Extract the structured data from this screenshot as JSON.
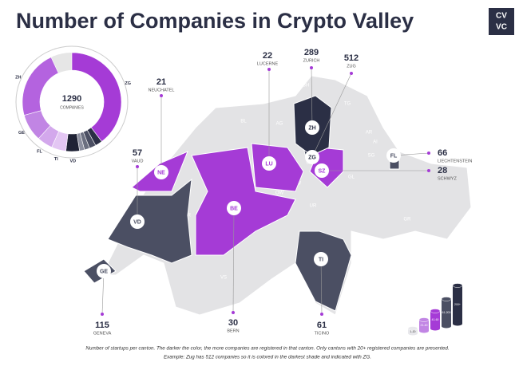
{
  "title": "Number of Companies in Crypto Valley",
  "logo": [
    "CV",
    "VC"
  ],
  "total": {
    "value": 1290,
    "label": "COMPANIES"
  },
  "cantons": [
    {
      "code": "ZG",
      "count": 512,
      "name": "ZUG",
      "color": "#2b2f45"
    },
    {
      "code": "BE",
      "count": 30,
      "name": "BERN",
      "color": "#a53bd6"
    },
    {
      "code": "SZ",
      "count": 28,
      "name": "SCHWYZ",
      "color": "#a53bd6"
    },
    {
      "code": "LU",
      "count": 22,
      "name": "LUCERNE",
      "color": "#a53bd6"
    },
    {
      "code": "NE",
      "count": 21,
      "name": "NEUCHATEL",
      "color": "#a53bd6"
    },
    {
      "code": "VD",
      "count": 57,
      "name": "VAUD",
      "color": "#4b4f63"
    },
    {
      "code": "TI",
      "count": 61,
      "name": "TICINO",
      "color": "#4b4f63"
    },
    {
      "code": "FL",
      "count": 66,
      "name": "LIECHTENSTEIN",
      "color": "#4b4f63"
    },
    {
      "code": "GE",
      "count": 115,
      "name": "GENEVA",
      "color": "#4b4f63"
    },
    {
      "code": "ZH",
      "count": 289,
      "name": "ZURICH",
      "color": "#2b2f45"
    }
  ],
  "regions": [
    "SH",
    "TG",
    "BL",
    "AG",
    "JU",
    "AR",
    "AI",
    "SG",
    "OW",
    "NW",
    "UR",
    "GL",
    "FR",
    "GR",
    "VS"
  ],
  "legend": [
    "1-20",
    "21-40",
    "41-60",
    "61-200",
    "200+"
  ],
  "footnote": [
    "Number of startups per canton. The darker the color, the more companies are registered in that canton. Only cantons with 20+ registered companies are presented.",
    "Example: Zug has 512 companies so it is colored in the darkest shade and indicated with ZG."
  ]
}
